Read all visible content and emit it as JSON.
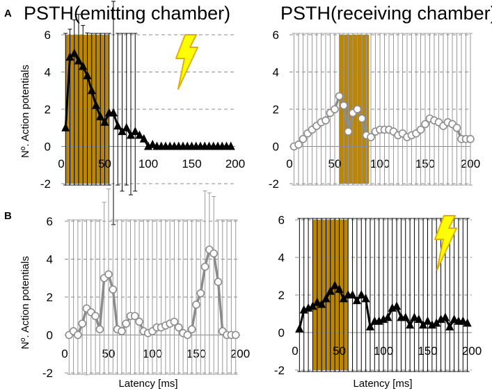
{
  "figure": {
    "titles": {
      "a_left": "PSTH(emitting chamber)",
      "a_right": "PSTH(receiving chamber)"
    },
    "panel_letters": {
      "a": "A",
      "b": "B"
    },
    "ylabel": "Nº. Action potentials",
    "xlabel": "Latency [ms]"
  },
  "colors": {
    "shade": "#b8860b",
    "black_series": "#000000",
    "gray_series": "#8c8c8c",
    "grid": "#8a8a8a",
    "bolt_fill": "#ffff00",
    "bolt_stroke": "#e0b000"
  },
  "icons": {
    "bolt": "lightning-bolt-icon"
  },
  "chart_data": [
    {
      "id": "A_left",
      "type": "line",
      "marker": "triangle",
      "color": "black",
      "title": "PSTH(emitting chamber)",
      "ylabel": "Nº. Action potentials",
      "xlabel": "",
      "xlim": [
        0,
        200
      ],
      "ylim": [
        -2,
        6
      ],
      "xticks": [
        "0",
        "50",
        "100",
        "150",
        "200"
      ],
      "yticks": [
        "-2",
        "0",
        "2",
        "4",
        "6"
      ],
      "shaded_interval": [
        5,
        55
      ],
      "stimulus_icon": true,
      "x": [
        5,
        10,
        15,
        20,
        25,
        30,
        35,
        40,
        45,
        50,
        55,
        60,
        65,
        70,
        75,
        80,
        85,
        90,
        95,
        100,
        105,
        110,
        115,
        120,
        125,
        130,
        135,
        140,
        145,
        150,
        155,
        160,
        165,
        170,
        175,
        180,
        185,
        190,
        195
      ],
      "y": [
        1.0,
        4.8,
        5.0,
        4.6,
        4.3,
        3.8,
        3.0,
        2.2,
        1.6,
        1.3,
        1.8,
        1.8,
        1.1,
        0.8,
        1.0,
        0.6,
        0.8,
        0.6,
        0.4,
        0.0,
        0.1,
        0.0,
        0.0,
        0.0,
        0.0,
        0.0,
        0.0,
        0.0,
        0.0,
        0.0,
        0.0,
        0.0,
        0.0,
        0.0,
        0.0,
        0.0,
        0.0,
        0.0,
        0.0
      ],
      "err": [
        0.6,
        1.5,
        1.8,
        2.5,
        2.2,
        2.3,
        2.2,
        1.6,
        1.5,
        1.3,
        1.2,
        6.0,
        0.8,
        3.2,
        0.8,
        3.2,
        3.2,
        0,
        0,
        0,
        0,
        0,
        0,
        0,
        0,
        0,
        0,
        0,
        0,
        0,
        0,
        0,
        0,
        0,
        0,
        0,
        0,
        0,
        0
      ]
    },
    {
      "id": "A_right",
      "type": "line",
      "marker": "circle",
      "color": "gray",
      "title": "PSTH(receiving chamber)",
      "ylabel": "",
      "xlabel": "",
      "xlim": [
        0,
        200
      ],
      "ylim": [
        -2,
        6
      ],
      "xticks": [
        "0",
        "50",
        "100",
        "150",
        "200"
      ],
      "yticks": [
        "-2",
        "0",
        "2",
        "4",
        "6"
      ],
      "shaded_interval": [
        55,
        88
      ],
      "stimulus_icon": false,
      "x": [
        5,
        10,
        15,
        20,
        25,
        30,
        35,
        40,
        45,
        50,
        55,
        60,
        65,
        70,
        75,
        80,
        85,
        90,
        95,
        100,
        105,
        110,
        115,
        120,
        125,
        130,
        135,
        140,
        145,
        150,
        155,
        160,
        165,
        170,
        175,
        180,
        185,
        190,
        195,
        200
      ],
      "y": [
        0.0,
        0.1,
        0.4,
        0.7,
        0.9,
        1.1,
        1.3,
        1.4,
        1.8,
        2.0,
        2.7,
        2.2,
        0.8,
        1.8,
        2.0,
        1.5,
        0.6,
        0.5,
        0.8,
        0.9,
        0.9,
        0.9,
        0.8,
        0.6,
        0.7,
        0.5,
        0.6,
        0.7,
        0.9,
        1.2,
        1.5,
        1.4,
        1.3,
        1.1,
        1.3,
        1.2,
        1.0,
        0.4,
        0.4,
        0.4
      ],
      "err": [
        0.1,
        0.3,
        0.8,
        1.2,
        1.5,
        2.0,
        2.7,
        2.5,
        2.3,
        2.6,
        2.3,
        1.8,
        1.5,
        2.1,
        1.8,
        1.5,
        1.3,
        1.0,
        1.1,
        1.2,
        1.0,
        1.2,
        1.0,
        1.0,
        0.9,
        0.8,
        0.9,
        1.0,
        1.0,
        1.2,
        3.1,
        1.6,
        1.6,
        1.6,
        1.2,
        1.5,
        1.0,
        0.6,
        0.3,
        0.2
      ]
    },
    {
      "id": "B_left",
      "type": "line",
      "marker": "circle",
      "color": "gray",
      "title": "",
      "ylabel": "Nº. Action potentials",
      "xlabel": "Latency [ms]",
      "xlim": [
        0,
        200
      ],
      "ylim": [
        -2,
        6
      ],
      "xticks": [
        "0",
        "50",
        "100",
        "150",
        "200"
      ],
      "yticks": [
        "-2",
        "0",
        "2",
        "4",
        "6"
      ],
      "shaded_interval": null,
      "stimulus_icon": false,
      "x": [
        5,
        10,
        15,
        20,
        25,
        30,
        35,
        40,
        45,
        50,
        55,
        60,
        65,
        70,
        75,
        80,
        85,
        90,
        95,
        100,
        105,
        110,
        115,
        120,
        125,
        130,
        135,
        140,
        145,
        150,
        155,
        160,
        165,
        170,
        175,
        180,
        185,
        190,
        195
      ],
      "y": [
        0.0,
        0.2,
        0.0,
        0.6,
        1.4,
        1.2,
        1.0,
        0.3,
        3.0,
        3.2,
        2.4,
        0.3,
        0.2,
        0.6,
        1.0,
        1.0,
        0.7,
        0.2,
        0.1,
        0.2,
        0.4,
        0.4,
        0.5,
        0.6,
        0.7,
        0.4,
        0.1,
        0.0,
        0.3,
        1.6,
        2.2,
        3.6,
        4.5,
        4.3,
        2.8,
        0.2,
        0.0,
        0.0,
        0.0
      ],
      "err": [
        0.1,
        0.3,
        0.2,
        1.0,
        3.5,
        2.2,
        2.0,
        0.5,
        4.0,
        4.5,
        1.5,
        0.8,
        0.5,
        1.0,
        1.5,
        1.5,
        1.2,
        0.4,
        0.3,
        0.3,
        0.5,
        0.5,
        0.8,
        1.0,
        1.0,
        0.8,
        0.3,
        0.1,
        0.5,
        2.5,
        3.0,
        4.0,
        3.0,
        3.0,
        2.5,
        0.3,
        0.1,
        0.1,
        0.1
      ]
    },
    {
      "id": "B_right",
      "type": "line",
      "marker": "triangle",
      "color": "black",
      "title": "",
      "ylabel": "",
      "xlabel": "Latency [ms]",
      "xlim": [
        0,
        200
      ],
      "ylim": [
        -2,
        6
      ],
      "xticks": [
        "0",
        "50",
        "100",
        "150",
        "200"
      ],
      "yticks": [
        "-2",
        "0",
        "2",
        "4",
        "6"
      ],
      "shaded_interval": [
        20,
        60
      ],
      "stimulus_icon": true,
      "x": [
        5,
        10,
        15,
        20,
        25,
        30,
        35,
        40,
        45,
        50,
        55,
        60,
        65,
        70,
        75,
        80,
        85,
        90,
        95,
        100,
        105,
        110,
        115,
        120,
        125,
        130,
        135,
        140,
        145,
        150,
        155,
        160,
        165,
        170,
        175,
        180,
        185,
        190,
        195
      ],
      "y": [
        0.2,
        1.2,
        1.3,
        1.4,
        1.6,
        1.5,
        1.8,
        2.2,
        2.5,
        2.3,
        1.8,
        2.0,
        2.0,
        1.7,
        2.0,
        1.8,
        0.3,
        0.6,
        0.6,
        0.7,
        0.8,
        1.3,
        1.4,
        0.8,
        0.8,
        0.4,
        0.8,
        0.7,
        0.4,
        0.6,
        0.4,
        0.5,
        0.7,
        0.8,
        0.3,
        0.7,
        0.6,
        0.6,
        0.5
      ],
      "err": [
        0.1,
        0.8,
        1.0,
        1.2,
        1.5,
        1.5,
        1.3,
        1.6,
        1.5,
        1.8,
        1.2,
        1.5,
        1.6,
        1.2,
        1.4,
        1.0,
        0.5,
        1.0,
        0.9,
        1.2,
        1.0,
        2.5,
        1.5,
        0.8,
        0.8,
        0.8,
        0.8,
        0.6,
        0.8,
        0.8,
        0.6,
        0.5,
        0.9,
        1.5,
        0.7,
        0.8,
        1.5,
        0.9,
        0.7
      ]
    }
  ]
}
